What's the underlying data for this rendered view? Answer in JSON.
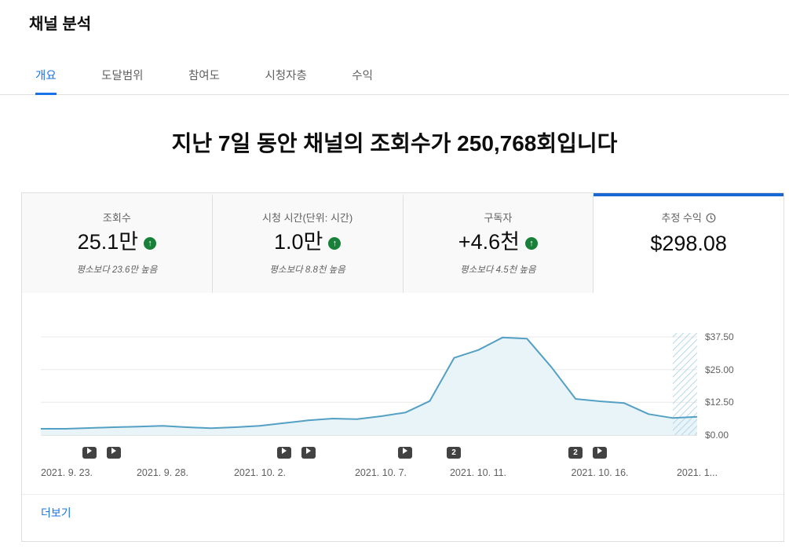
{
  "header": {
    "title": "채널 분석"
  },
  "tabs": [
    {
      "label": "개요",
      "active": true
    },
    {
      "label": "도달범위",
      "active": false
    },
    {
      "label": "참여도",
      "active": false
    },
    {
      "label": "시청자층",
      "active": false
    },
    {
      "label": "수익",
      "active": false
    }
  ],
  "headline": "지난 7일 동안 채널의 조회수가 250,768회입니다",
  "metrics": [
    {
      "label": "조회수",
      "value": "25.1만",
      "delta_icon": "up-arrow",
      "subtext": "평소보다 23.6만 높음",
      "selected": false
    },
    {
      "label": "시청 시간(단위: 시간)",
      "value": "1.0만",
      "delta_icon": "up-arrow",
      "subtext": "평소보다 8.8천 높음",
      "selected": false
    },
    {
      "label": "구독자",
      "value": "+4.6천",
      "delta_icon": "up-arrow",
      "subtext": "평소보다 4.5천 높음",
      "selected": false
    },
    {
      "label": "추정 수익",
      "value": "$298.08",
      "icon": "clock-icon",
      "subtext": "",
      "selected": true
    }
  ],
  "chart_data": {
    "type": "area",
    "series": [
      {
        "name": "추정 수익",
        "values": [
          2.4,
          2.4,
          2.7,
          3.0,
          3.2,
          3.5,
          3.0,
          2.6,
          3.0,
          3.5,
          4.6,
          5.6,
          6.3,
          6.1,
          7.2,
          8.6,
          13.0,
          29.5,
          32.5,
          37.3,
          36.8,
          26.0,
          13.8,
          12.9,
          12.2,
          8.0,
          6.5,
          7.0
        ]
      }
    ],
    "unit": "USD",
    "ylim": [
      0,
      41.7
    ],
    "y_ticks": [
      {
        "label": "$37.50",
        "value": 37.5
      },
      {
        "label": "$25.00",
        "value": 25
      },
      {
        "label": "$12.50",
        "value": 12.5
      },
      {
        "label": "$0.00",
        "value": 0
      }
    ],
    "x_labels": [
      "2021. 9. 23.",
      "2021. 9. 28.",
      "2021. 10. 2.",
      "2021. 10. 7.",
      "2021. 10. 11.",
      "2021. 10. 16.",
      "2021. 1..."
    ],
    "x_label_positions": [
      0,
      5,
      9,
      14,
      18,
      23,
      27
    ],
    "incomplete_from_index": 26,
    "markers": [
      {
        "day": 2,
        "type": "video"
      },
      {
        "day": 3,
        "type": "video"
      },
      {
        "day": 10,
        "type": "video"
      },
      {
        "day": 11,
        "type": "video"
      },
      {
        "day": 15,
        "type": "video"
      },
      {
        "day": 17,
        "type": "count",
        "label": "2"
      },
      {
        "day": 22,
        "type": "count",
        "label": "2"
      },
      {
        "day": 23,
        "type": "video"
      }
    ],
    "grid": true,
    "legend": "none"
  },
  "footer": {
    "more_label": "더보기"
  },
  "colors": {
    "accent_blue": "#1a73e8",
    "selected_card_border": "#1967d2",
    "positive_green": "#188038",
    "chart_line": "#54a0c4",
    "chart_fill": "#e9f4f9",
    "hatch_stripe": "#a3cfe2",
    "muted_text": "#606060"
  }
}
